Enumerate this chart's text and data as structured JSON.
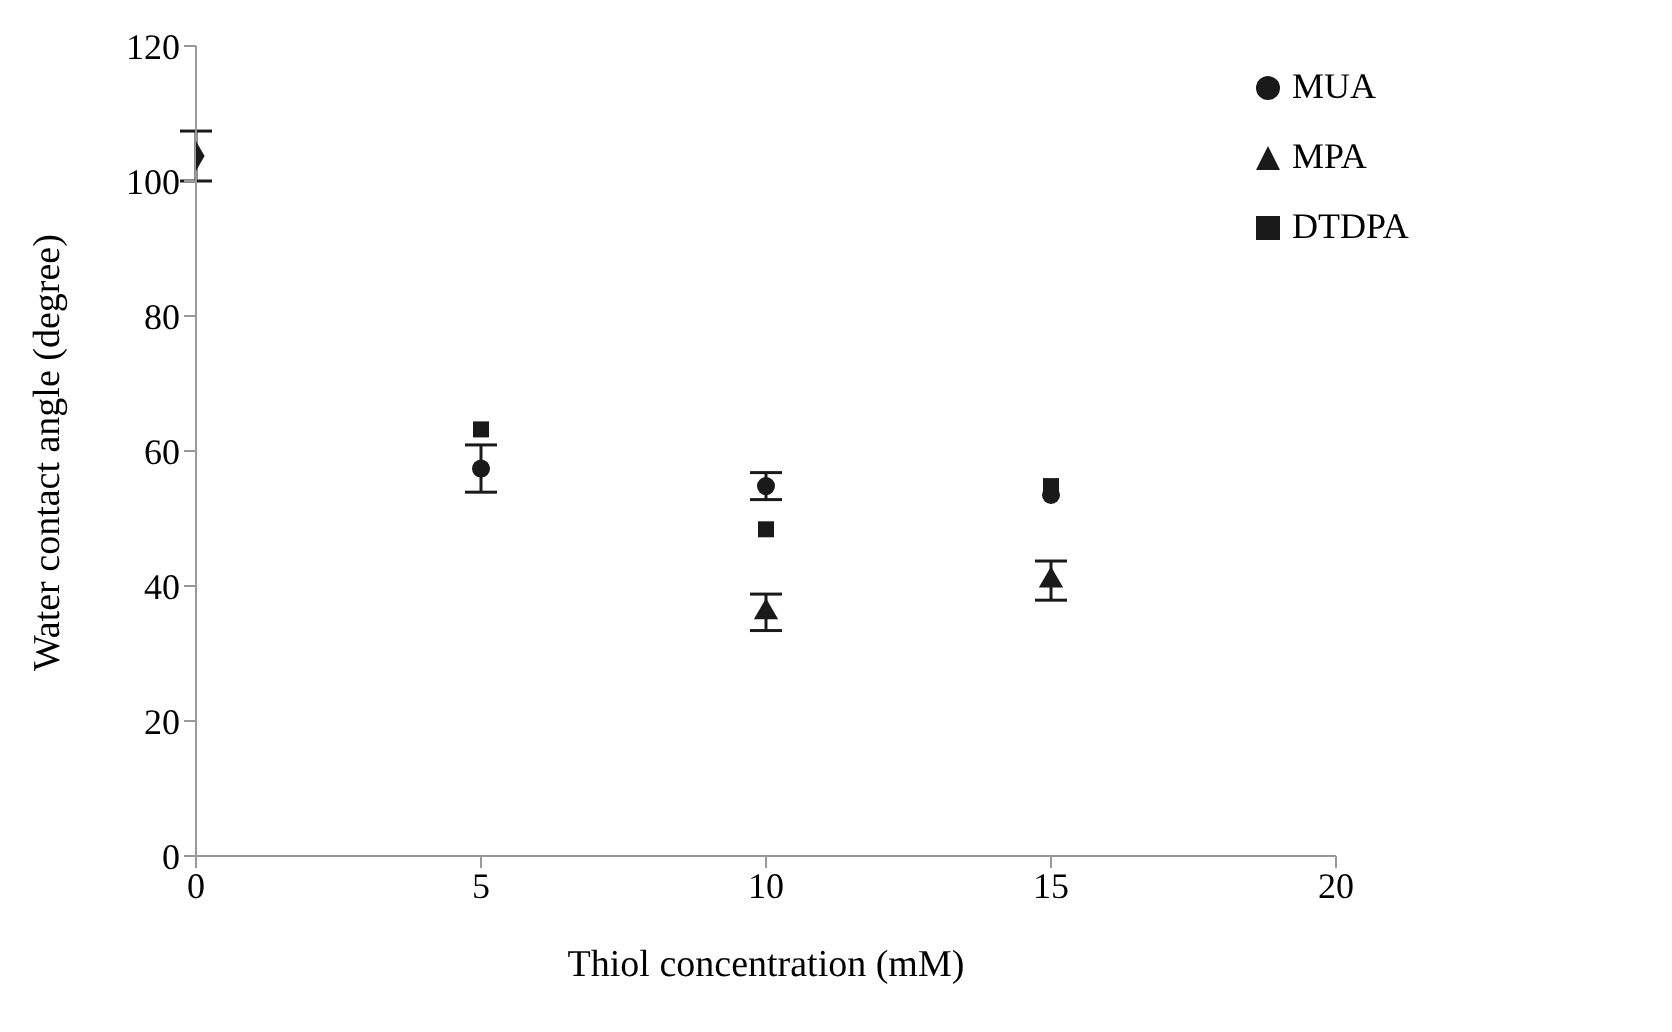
{
  "chart_data": {
    "type": "scatter",
    "xlabel": "Thiol concentration (mM)",
    "ylabel": "Water contact angle (degree)",
    "xlim": [
      0,
      20
    ],
    "xticks": [
      0,
      5,
      10,
      15,
      20
    ],
    "ylim": [
      0,
      120
    ],
    "yticks": [
      0,
      20,
      40,
      60,
      80,
      100,
      120
    ],
    "grid": false,
    "legend": "top right",
    "series": [
      {
        "marker": "diamond",
        "color": "#1a1a1a",
        "x": [
          0
        ],
        "values": [
          103.7
        ],
        "errors": [
          3.7
        ]
      },
      {
        "name": "MUA",
        "marker": "circle",
        "color": "#1a1a1a",
        "x": [
          5,
          10,
          15
        ],
        "values": [
          57.4,
          54.8,
          53.5
        ],
        "errors": [
          3.5,
          2,
          null
        ]
      },
      {
        "name": "MPA",
        "marker": "triangle",
        "color": "#1a1a1a",
        "x": [
          10,
          15
        ],
        "values": [
          36.1,
          40.8
        ],
        "errors": [
          2.7,
          2.9
        ]
      },
      {
        "name": "DTDPA",
        "marker": "square",
        "color": "#1a1a1a",
        "x": [
          5,
          10,
          15
        ],
        "values": [
          63.2,
          48.4,
          54.8
        ],
        "errors": [
          null,
          null,
          null
        ]
      }
    ]
  }
}
